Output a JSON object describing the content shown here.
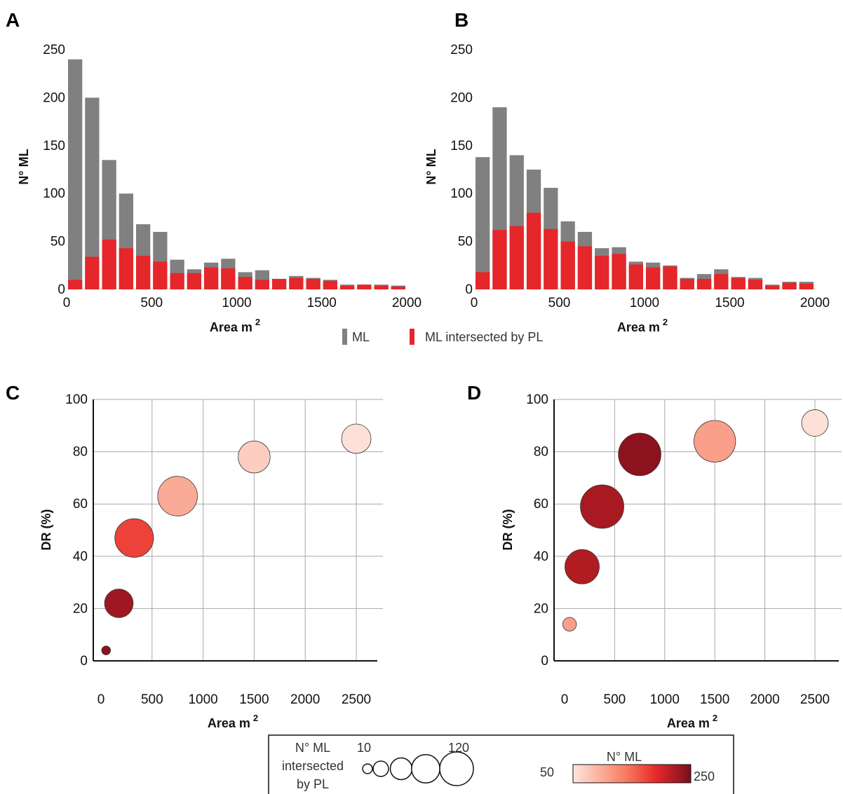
{
  "panels": {
    "a": "A",
    "b": "B",
    "c": "C",
    "d": "D"
  },
  "hist_legend": {
    "ml": "ML",
    "ml_pl": "ML intersected by PL"
  },
  "size_legend": {
    "title_lines": [
      "N° ML",
      "intersected",
      "by PL"
    ],
    "min_label": "10",
    "max_label": "120",
    "size_values": [
      10,
      25,
      50,
      85,
      120
    ]
  },
  "color_legend": {
    "title": "N° ML",
    "min_label": "50",
    "max_label": "250",
    "color_range": [
      50,
      250
    ],
    "colors": [
      "#fde6de",
      "#f87b5e",
      "#e82a2a",
      "#7a0d1c"
    ]
  },
  "colors": {
    "gray": "#808080",
    "red": "#e5262a"
  },
  "chart_data": [
    {
      "id": "A",
      "type": "bar",
      "xlabel": "Area m",
      "xlabel_sup": "2",
      "ylabel": "N° ML",
      "xlim": [
        0,
        2000
      ],
      "ylim": [
        0,
        250
      ],
      "xticks": [
        "0",
        "500",
        "1000",
        "1500",
        "2000"
      ],
      "yticks": [
        "0",
        "50",
        "100",
        "150",
        "200",
        "250"
      ],
      "bin_width": 100,
      "x": [
        0,
        100,
        200,
        300,
        400,
        500,
        600,
        700,
        800,
        900,
        1000,
        1100,
        1200,
        1300,
        1400,
        1500,
        1600,
        1700,
        1800,
        1900
      ],
      "series": [
        {
          "name": "ML",
          "values": [
            240,
            200,
            135,
            100,
            68,
            60,
            31,
            21,
            28,
            32,
            18,
            20,
            11,
            14,
            12,
            10,
            5,
            5,
            5,
            4
          ]
        },
        {
          "name": "ML intersected by PL",
          "values": [
            10,
            34,
            52,
            43,
            35,
            29,
            17,
            17,
            23,
            22,
            13,
            10,
            11,
            12,
            11,
            9,
            4,
            5,
            4,
            3
          ]
        }
      ]
    },
    {
      "id": "B",
      "type": "bar",
      "xlabel": "Area m",
      "xlabel_sup": "2",
      "ylabel": "N° ML",
      "xlim": [
        0,
        2000
      ],
      "ylim": [
        0,
        250
      ],
      "xticks": [
        "0",
        "500",
        "1000",
        "1500",
        "2000"
      ],
      "yticks": [
        "0",
        "50",
        "100",
        "150",
        "200",
        "250"
      ],
      "bin_width": 100,
      "x": [
        0,
        100,
        200,
        300,
        400,
        500,
        600,
        700,
        800,
        900,
        1000,
        1100,
        1200,
        1300,
        1400,
        1500,
        1600,
        1700,
        1800,
        1900
      ],
      "series": [
        {
          "name": "ML",
          "values": [
            138,
            190,
            140,
            125,
            106,
            71,
            60,
            43,
            44,
            29,
            28,
            25,
            12,
            16,
            21,
            13,
            12,
            5,
            8,
            8
          ]
        },
        {
          "name": "ML intersected by PL",
          "values": [
            18,
            62,
            66,
            80,
            63,
            50,
            45,
            35,
            37,
            26,
            23,
            24,
            11,
            11,
            16,
            12,
            10,
            4,
            7,
            6
          ]
        }
      ]
    },
    {
      "id": "C",
      "type": "scatter",
      "xlabel": "Area m",
      "xlabel_sup": "2",
      "ylabel": "DR (%)",
      "xlim": [
        0,
        2500
      ],
      "ylim": [
        0,
        100
      ],
      "xticks": [
        "0",
        "500",
        "1000",
        "1500",
        "2000",
        "2500"
      ],
      "yticks": [
        "0",
        "20",
        "40",
        "60",
        "80",
        "100"
      ],
      "grid": true,
      "points": [
        {
          "x": 50,
          "y": 4,
          "size": 5,
          "count": 240
        },
        {
          "x": 175,
          "y": 22,
          "size": 52,
          "count": 230
        },
        {
          "x": 325,
          "y": 47,
          "size": 95,
          "count": 175
        },
        {
          "x": 750,
          "y": 63,
          "size": 100,
          "count": 100
        },
        {
          "x": 1500,
          "y": 78,
          "size": 65,
          "count": 70
        },
        {
          "x": 2500,
          "y": 85,
          "size": 55,
          "count": 55
        }
      ]
    },
    {
      "id": "D",
      "type": "scatter",
      "xlabel": "Area m",
      "xlabel_sup": "2",
      "ylabel": "DR (%)",
      "xlim": [
        0,
        2500
      ],
      "ylim": [
        0,
        100
      ],
      "xticks": [
        "0",
        "500",
        "1000",
        "1500",
        "2000",
        "2500"
      ],
      "yticks": [
        "0",
        "20",
        "40",
        "60",
        "80",
        "100"
      ],
      "grid": true,
      "points": [
        {
          "x": 50,
          "y": 14,
          "size": 12,
          "count": 110
        },
        {
          "x": 175,
          "y": 36,
          "size": 75,
          "count": 220
        },
        {
          "x": 375,
          "y": 59,
          "size": 120,
          "count": 225
        },
        {
          "x": 750,
          "y": 79,
          "size": 115,
          "count": 240
        },
        {
          "x": 1500,
          "y": 84,
          "size": 110,
          "count": 110
        },
        {
          "x": 2500,
          "y": 91,
          "size": 45,
          "count": 55
        }
      ]
    }
  ]
}
